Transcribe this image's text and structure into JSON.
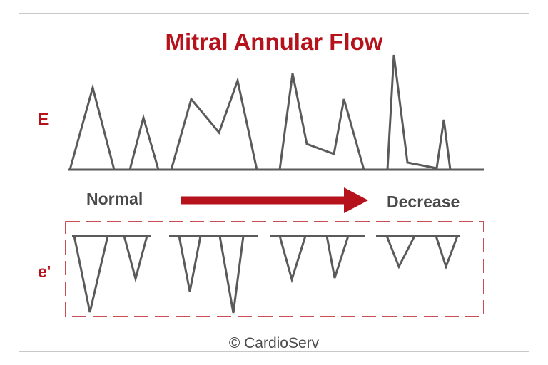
{
  "title": "Mitral Annular Flow",
  "labels": {
    "e_wave": "E",
    "e_prime": "e'",
    "start": "Normal",
    "end": "Decrease"
  },
  "credit": "© CardioServ",
  "colors": {
    "accent": "#b5121b",
    "waveform": "#5a5a5a",
    "text": "#4a4a4a",
    "frame": "#c9c9c9"
  }
}
